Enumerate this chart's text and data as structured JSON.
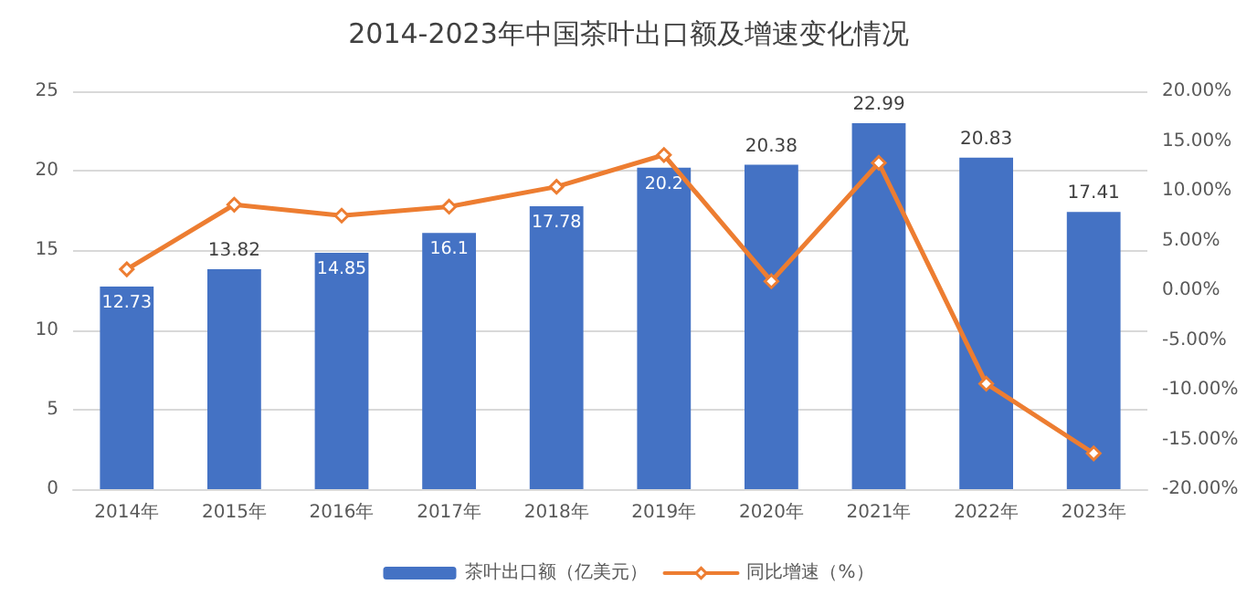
{
  "chart_data": {
    "type": "bar",
    "title": "2014-2023年中国茶叶出口额及增速变化情况",
    "categories": [
      "2014年",
      "2015年",
      "2016年",
      "2017年",
      "2018年",
      "2019年",
      "2020年",
      "2021年",
      "2022年",
      "2023年"
    ],
    "series": [
      {
        "name": "茶叶出口额（亿美元）",
        "color": "#4472c4",
        "values": [
          12.73,
          13.82,
          14.85,
          16.1,
          17.78,
          20.2,
          20.38,
          22.99,
          20.83,
          17.41
        ],
        "value_labels": [
          "12.73",
          "13.82",
          "14.85",
          "16.1",
          "17.78",
          "20.2",
          "20.38",
          "22.99",
          "20.83",
          "17.41"
        ]
      },
      {
        "name": "同比增速（%）",
        "type": "line",
        "axis": "y2",
        "color": "#ed7d31",
        "values": [
          2.1,
          8.6,
          7.5,
          8.4,
          10.4,
          13.6,
          0.9,
          12.8,
          -9.4,
          -16.4
        ]
      }
    ],
    "ylim": [
      0,
      25
    ],
    "yticks": [
      0,
      5,
      10,
      15,
      20,
      25
    ],
    "y2lim": [
      -20,
      20
    ],
    "y2ticks": [
      {
        "value": -20,
        "label": "-20.00%"
      },
      {
        "value": -15,
        "label": "-15.00%"
      },
      {
        "value": -10,
        "label": "-10.00%"
      },
      {
        "value": -5,
        "label": "-5.00%"
      },
      {
        "value": 0,
        "label": "0.00%"
      },
      {
        "value": 5,
        "label": "5.00%"
      },
      {
        "value": 10,
        "label": "10.00%"
      },
      {
        "value": 15,
        "label": "15.00%"
      },
      {
        "value": 20,
        "label": "20.00%"
      }
    ],
    "grid": "y",
    "legend": "bottom",
    "marker": "diamond"
  }
}
